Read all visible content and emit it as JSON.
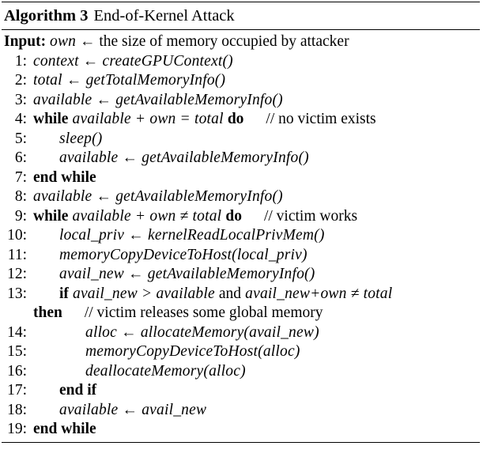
{
  "caption": {
    "label": "Algorithm 3",
    "title": "End-of-Kernel Attack"
  },
  "input": {
    "keyword": "Input:",
    "text": "own ← the size of memory occupied by attacker"
  },
  "lines": [
    {
      "n": "1:",
      "indent": 0,
      "parts": [
        [
          "m",
          "context ← createGPUContext()"
        ]
      ]
    },
    {
      "n": "2:",
      "indent": 0,
      "parts": [
        [
          "m",
          "total ← getTotalMemoryInfo()"
        ]
      ]
    },
    {
      "n": "3:",
      "indent": 0,
      "parts": [
        [
          "m",
          "available ← getAvailableMemoryInfo()"
        ]
      ]
    },
    {
      "n": "4:",
      "indent": 0,
      "parts": [
        [
          "kw",
          "while"
        ],
        [
          "m",
          " available + own = total "
        ],
        [
          "kw",
          "do"
        ],
        [
          "cm",
          "// no victim exists"
        ]
      ]
    },
    {
      "n": "5:",
      "indent": 1,
      "parts": [
        [
          "m",
          "sleep()"
        ]
      ]
    },
    {
      "n": "6:",
      "indent": 1,
      "parts": [
        [
          "m",
          "available ← getAvailableMemoryInfo()"
        ]
      ]
    },
    {
      "n": "7:",
      "indent": 0,
      "parts": [
        [
          "kw",
          "end while"
        ]
      ]
    },
    {
      "n": "8:",
      "indent": 0,
      "parts": [
        [
          "m",
          "available ← getAvailableMemoryInfo()"
        ]
      ]
    },
    {
      "n": "9:",
      "indent": 0,
      "parts": [
        [
          "kw",
          "while"
        ],
        [
          "m",
          " available + own ≠ total "
        ],
        [
          "kw",
          "do"
        ],
        [
          "cm",
          "// victim works"
        ]
      ]
    },
    {
      "n": "10:",
      "indent": 1,
      "parts": [
        [
          "m",
          "local_priv ← kernelReadLocalPrivMem()"
        ]
      ]
    },
    {
      "n": "11:",
      "indent": 1,
      "parts": [
        [
          "m",
          "memoryCopyDeviceToHost(local_priv)"
        ]
      ]
    },
    {
      "n": "12:",
      "indent": 1,
      "parts": [
        [
          "m",
          "avail_new ← getAvailableMemoryInfo()"
        ]
      ]
    },
    {
      "n": "13:",
      "indent": 1,
      "parts": [
        [
          "kw",
          "if"
        ],
        [
          "m",
          " avail_new > available "
        ],
        [
          "t",
          "and"
        ],
        [
          "m",
          " avail_new+own ≠ total"
        ]
      ]
    },
    {
      "n": "",
      "indent": 0,
      "parts": [
        [
          "kw",
          "then"
        ],
        [
          "cm",
          "// victim releases some global memory"
        ]
      ]
    },
    {
      "n": "14:",
      "indent": 2,
      "parts": [
        [
          "m",
          "alloc ← allocateMemory(avail_new)"
        ]
      ]
    },
    {
      "n": "15:",
      "indent": 2,
      "parts": [
        [
          "m",
          "memoryCopyDeviceToHost(alloc)"
        ]
      ]
    },
    {
      "n": "16:",
      "indent": 2,
      "parts": [
        [
          "m",
          "deallocateMemory(alloc)"
        ]
      ]
    },
    {
      "n": "17:",
      "indent": 1,
      "parts": [
        [
          "kw",
          "end if"
        ]
      ]
    },
    {
      "n": "18:",
      "indent": 1,
      "parts": [
        [
          "m",
          "available ← avail_new"
        ]
      ]
    },
    {
      "n": "19:",
      "indent": 0,
      "parts": [
        [
          "kw",
          "end while"
        ]
      ]
    }
  ]
}
